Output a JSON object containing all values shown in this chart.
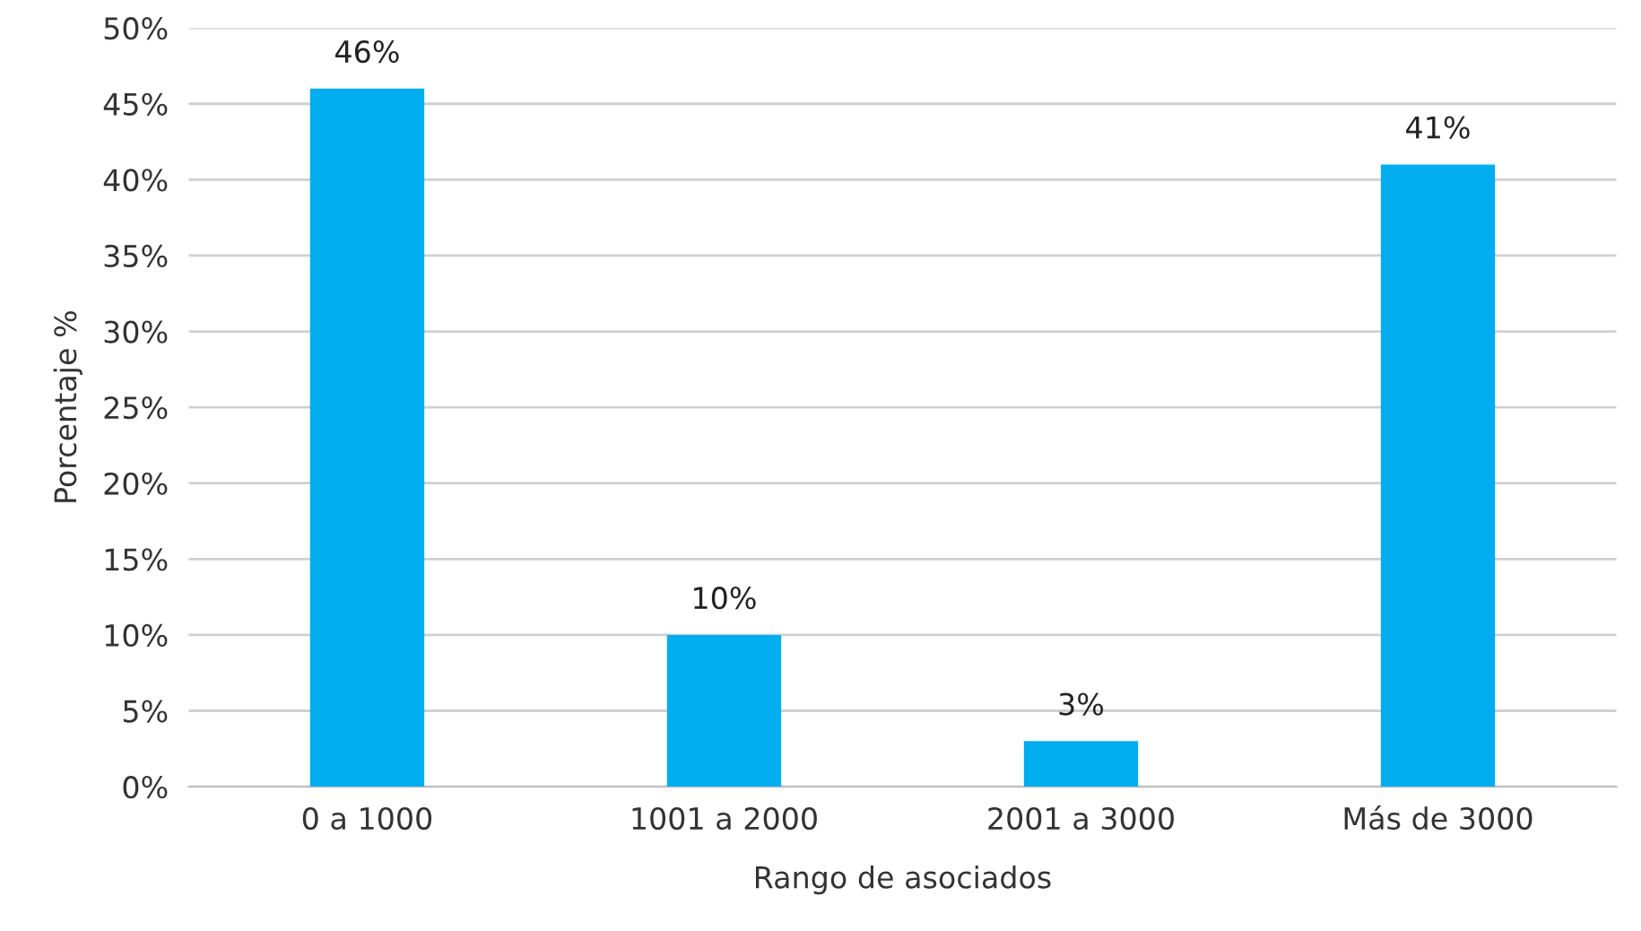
{
  "chart_data": {
    "type": "bar",
    "xlabel": "Rango de asociados",
    "ylabel": "Porcentaje %",
    "categories": [
      "0 a 1000",
      "1001 a 2000",
      "2001 a 3000",
      "Más de 3000"
    ],
    "values": [
      46,
      10,
      3,
      41
    ],
    "color": "#00adef",
    "value_labels": [
      "46%",
      "10%",
      "3%",
      "41%"
    ],
    "grid": "y",
    "ylim": [
      0,
      50
    ],
    "yticks": [
      {
        "value": 0,
        "label": "0%"
      },
      {
        "value": 5,
        "label": "5%"
      },
      {
        "value": 10,
        "label": "10%"
      },
      {
        "value": 15,
        "label": "15%"
      },
      {
        "value": 20,
        "label": "20%"
      },
      {
        "value": 25,
        "label": "25%"
      },
      {
        "value": 30,
        "label": "30%"
      },
      {
        "value": 35,
        "label": "35%"
      },
      {
        "value": 40,
        "label": "40%"
      },
      {
        "value": 45,
        "label": "45%"
      },
      {
        "value": 50,
        "label": "50%"
      }
    ]
  }
}
